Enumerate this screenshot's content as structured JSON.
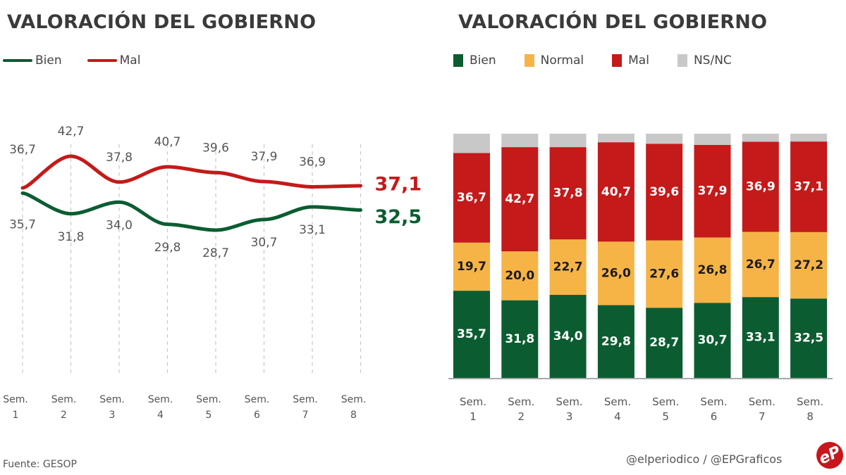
{
  "left_chart": {
    "title": "VALORACIÓN DEL GOBIERNO",
    "legend": [
      {
        "label": "Bien",
        "color": "#0b5d31"
      },
      {
        "label": "Mal",
        "color": "#c41a1a"
      }
    ]
  },
  "right_chart": {
    "title": "VALORACIÓN DEL GOBIERNO",
    "legend": [
      {
        "label": "Bien",
        "color": "#0b5d31"
      },
      {
        "label": "Normal",
        "color": "#f6b447"
      },
      {
        "label": "Mal",
        "color": "#c41a1a"
      },
      {
        "label": "NS/NC",
        "color": "#c8c8c8"
      }
    ]
  },
  "chart_data": [
    {
      "type": "line",
      "title": "VALORACIÓN DEL GOBIERNO",
      "categories": [
        "Sem. 1",
        "Sem. 2",
        "Sem. 3",
        "Sem. 4",
        "Sem. 5",
        "Sem. 6",
        "Sem. 7",
        "Sem. 8"
      ],
      "category_lines": [
        [
          "Sem.",
          "1"
        ],
        [
          "Sem.",
          "2"
        ],
        [
          "Sem.",
          "3"
        ],
        [
          "Sem.",
          "4"
        ],
        [
          "Sem.",
          "5"
        ],
        [
          "Sem.",
          "6"
        ],
        [
          "Sem.",
          "7"
        ],
        [
          "Sem.",
          "8"
        ]
      ],
      "series": [
        {
          "name": "Mal",
          "color": "#c41a1a",
          "values": [
            36.7,
            42.7,
            37.8,
            40.7,
            39.6,
            37.9,
            36.9,
            37.1
          ],
          "labels": [
            "36,7",
            "42,7",
            "37,8",
            "40,7",
            "39,6",
            "37,9",
            "36,9",
            "37,1"
          ]
        },
        {
          "name": "Bien",
          "color": "#0b5d31",
          "values": [
            35.7,
            31.8,
            34.0,
            29.8,
            28.7,
            30.7,
            33.1,
            32.5
          ],
          "labels": [
            "35,7",
            "31,8",
            "34,0",
            "29,8",
            "28,7",
            "30,7",
            "33,1",
            "32,5"
          ]
        }
      ],
      "xlabel": "",
      "ylabel": "",
      "grid": "vertical-dashed",
      "legend": "top-left"
    },
    {
      "type": "bar",
      "stacked": true,
      "title": "VALORACIÓN DEL GOBIERNO",
      "categories": [
        "Sem. 1",
        "Sem. 2",
        "Sem. 3",
        "Sem. 4",
        "Sem. 5",
        "Sem. 6",
        "Sem. 7",
        "Sem. 8"
      ],
      "category_lines": [
        [
          "Sem.",
          "1"
        ],
        [
          "Sem.",
          "2"
        ],
        [
          "Sem.",
          "3"
        ],
        [
          "Sem.",
          "4"
        ],
        [
          "Sem.",
          "5"
        ],
        [
          "Sem.",
          "6"
        ],
        [
          "Sem.",
          "7"
        ],
        [
          "Sem.",
          "8"
        ]
      ],
      "series": [
        {
          "name": "Bien",
          "color": "#0b5d31",
          "label_color": "#ffffff",
          "values": [
            35.7,
            31.8,
            34.0,
            29.8,
            28.7,
            30.7,
            33.1,
            32.5
          ],
          "labels": [
            "35,7",
            "31,8",
            "34,0",
            "29,8",
            "28,7",
            "30,7",
            "33,1",
            "32,5"
          ]
        },
        {
          "name": "Normal",
          "color": "#f6b447",
          "label_color": "#1a1a1a",
          "values": [
            19.7,
            20.0,
            22.7,
            26.0,
            27.6,
            26.8,
            26.7,
            27.2
          ],
          "labels": [
            "19,7",
            "20,0",
            "22,7",
            "26,0",
            "27,6",
            "26,8",
            "26,7",
            "27,2"
          ]
        },
        {
          "name": "Mal",
          "color": "#c41a1a",
          "label_color": "#ffffff",
          "values": [
            36.7,
            42.7,
            37.8,
            40.7,
            39.6,
            37.9,
            36.9,
            37.1
          ],
          "labels": [
            "36,7",
            "42,7",
            "37,8",
            "40,7",
            "39,6",
            "37,9",
            "36,9",
            "37,1"
          ]
        },
        {
          "name": "NS/NC",
          "color": "#c8c8c8",
          "label_color": null,
          "values": [
            7.9,
            5.5,
            5.5,
            3.5,
            4.1,
            4.6,
            3.3,
            3.2
          ],
          "labels": [
            "",
            "",
            "",
            "",
            "",
            "",
            "",
            ""
          ]
        }
      ],
      "ylim": [
        0,
        100
      ],
      "xlabel": "",
      "ylabel": "",
      "legend": "top-left"
    }
  ],
  "footer": {
    "source": "Fuente: GESOP",
    "credit": "@elperiodico / @EPGraficos",
    "logo_text": "eP"
  }
}
